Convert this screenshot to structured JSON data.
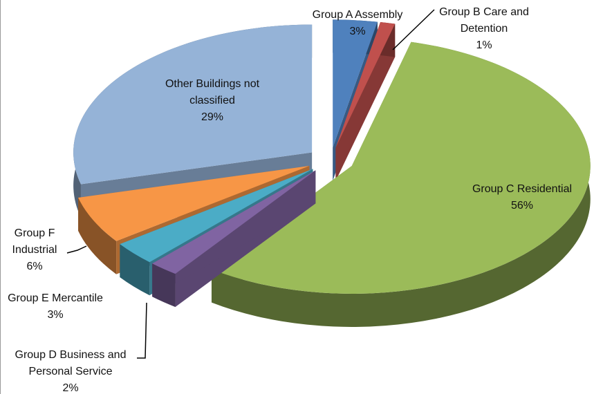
{
  "chart_data": {
    "type": "pie",
    "categories": [
      "Group A Assembly",
      "Group B Care and Detention",
      "Group C Residential",
      "Group D Business and Personal Service",
      "Group E Mercantile",
      "Group F Industrial",
      "Other Buildings not classified"
    ],
    "values": [
      3,
      1,
      56,
      2,
      3,
      6,
      29
    ],
    "value_labels": [
      "3%",
      "1%",
      "56%",
      "2%",
      "3%",
      "6%",
      "29%"
    ],
    "colors": [
      "#4f81bd",
      "#c0504d",
      "#9bbb59",
      "#8064a2",
      "#4bacc6",
      "#f79646",
      "#95b3d7"
    ]
  }
}
